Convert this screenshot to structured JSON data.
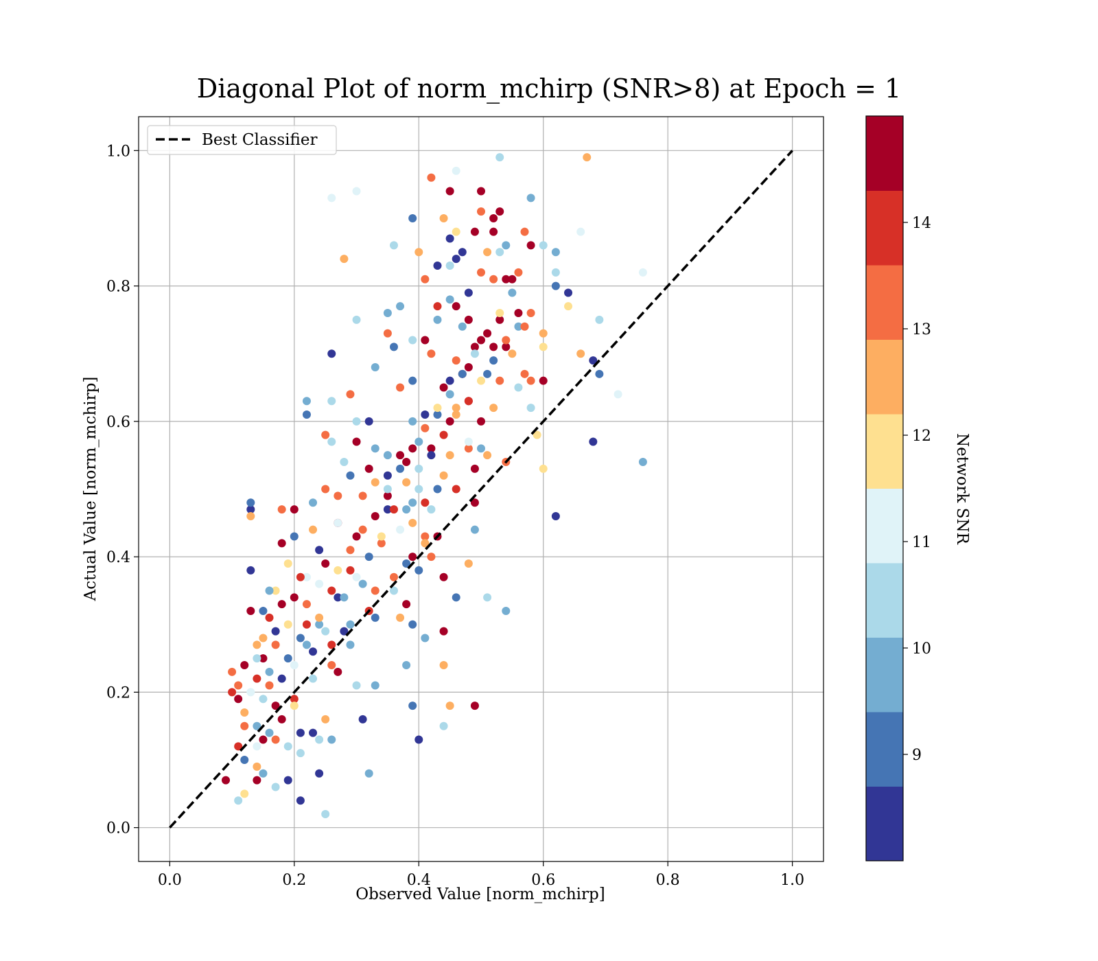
{
  "chart_data": {
    "type": "scatter",
    "title": "Diagonal Plot of norm_mchirp (SNR>8) at Epoch = 1",
    "xlabel": "Observed Value [norm_mchirp]",
    "ylabel": "Actual Value [norm_mchirp]",
    "xlim": [
      -0.05,
      1.05
    ],
    "ylim": [
      -0.05,
      1.05
    ],
    "xticks": [
      "0.0",
      "0.2",
      "0.4",
      "0.6",
      "0.8",
      "1.0"
    ],
    "yticks": [
      "0.0",
      "0.2",
      "0.4",
      "0.6",
      "0.8",
      "1.0"
    ],
    "grid": true,
    "legend": {
      "position": "top-left",
      "entries": [
        "Best Classifier"
      ]
    },
    "reference_line": {
      "name": "Best Classifier",
      "x": [
        0,
        1
      ],
      "y": [
        0,
        1
      ],
      "style": "dashed",
      "color": "#000000"
    },
    "colorbar": {
      "label": "Network SNR",
      "range": [
        8,
        15
      ],
      "ticks": [
        "9",
        "10",
        "11",
        "12",
        "13",
        "14"
      ],
      "colors": [
        "#313695",
        "#4575b4",
        "#74add1",
        "#abd9e9",
        "#e0f3f8",
        "#fee090",
        "#fdae61",
        "#f46d43",
        "#d73027",
        "#a50026"
      ]
    },
    "points": [
      [
        0.09,
        0.07,
        14.5
      ],
      [
        0.1,
        0.2,
        14.2
      ],
      [
        0.1,
        0.23,
        13.1
      ],
      [
        0.11,
        0.19,
        14.6
      ],
      [
        0.11,
        0.12,
        14.1
      ],
      [
        0.12,
        0.24,
        14.5
      ],
      [
        0.12,
        0.15,
        13.5
      ],
      [
        0.12,
        0.05,
        12.0
      ],
      [
        0.11,
        0.04,
        10.5
      ],
      [
        0.13,
        0.32,
        14.3
      ],
      [
        0.13,
        0.38,
        8.4
      ],
      [
        0.13,
        0.47,
        8.4
      ],
      [
        0.13,
        0.48,
        9.2
      ],
      [
        0.13,
        0.46,
        12.6
      ],
      [
        0.14,
        0.27,
        12.8
      ],
      [
        0.14,
        0.22,
        13.7
      ],
      [
        0.14,
        0.15,
        9.4
      ],
      [
        0.14,
        0.09,
        12.4
      ],
      [
        0.14,
        0.07,
        14.6
      ],
      [
        0.15,
        0.32,
        9.1
      ],
      [
        0.15,
        0.25,
        14.4
      ],
      [
        0.15,
        0.19,
        10.3
      ],
      [
        0.15,
        0.13,
        14.7
      ],
      [
        0.15,
        0.08,
        10.0
      ],
      [
        0.16,
        0.31,
        14.2
      ],
      [
        0.16,
        0.21,
        13.1
      ],
      [
        0.16,
        0.14,
        9.5
      ],
      [
        0.17,
        0.06,
        10.5
      ],
      [
        0.17,
        0.18,
        14.5
      ],
      [
        0.17,
        0.29,
        8.3
      ],
      [
        0.17,
        0.35,
        12.2
      ],
      [
        0.18,
        0.42,
        14.4
      ],
      [
        0.18,
        0.47,
        13.3
      ],
      [
        0.18,
        0.33,
        14.5
      ],
      [
        0.19,
        0.25,
        9.0
      ],
      [
        0.19,
        0.12,
        10.5
      ],
      [
        0.19,
        0.07,
        8.4
      ],
      [
        0.2,
        0.47,
        14.6
      ],
      [
        0.2,
        0.43,
        9.3
      ],
      [
        0.2,
        0.34,
        14.3
      ],
      [
        0.2,
        0.19,
        14.0
      ],
      [
        0.21,
        0.14,
        8.4
      ],
      [
        0.21,
        0.04,
        8.7
      ],
      [
        0.21,
        0.11,
        10.5
      ],
      [
        0.22,
        0.3,
        13.8
      ],
      [
        0.22,
        0.37,
        10.8
      ],
      [
        0.22,
        0.27,
        9.6
      ],
      [
        0.22,
        0.61,
        9.2
      ],
      [
        0.22,
        0.63,
        9.4
      ],
      [
        0.23,
        0.48,
        9.4
      ],
      [
        0.23,
        0.44,
        12.8
      ],
      [
        0.23,
        0.14,
        8.5
      ],
      [
        0.24,
        0.08,
        8.5
      ],
      [
        0.24,
        0.13,
        10.6
      ],
      [
        0.24,
        0.3,
        9.6
      ],
      [
        0.24,
        0.36,
        11.4
      ],
      [
        0.25,
        0.39,
        14.6
      ],
      [
        0.25,
        0.5,
        13.6
      ],
      [
        0.25,
        0.58,
        13.6
      ],
      [
        0.26,
        0.57,
        10.5
      ],
      [
        0.26,
        0.63,
        10.5
      ],
      [
        0.26,
        0.93,
        11.3
      ],
      [
        0.25,
        0.16,
        12.6
      ],
      [
        0.25,
        0.02,
        10.6
      ],
      [
        0.26,
        0.13,
        9.8
      ],
      [
        0.26,
        0.7,
        8.4
      ],
      [
        0.26,
        0.27,
        14.0
      ],
      [
        0.27,
        0.49,
        13.3
      ],
      [
        0.27,
        0.45,
        14.4
      ],
      [
        0.27,
        0.34,
        8.3
      ],
      [
        0.27,
        0.23,
        14.5
      ],
      [
        0.28,
        0.84,
        12.7
      ],
      [
        0.28,
        0.54,
        10.4
      ],
      [
        0.29,
        0.64,
        13.3
      ],
      [
        0.29,
        0.52,
        9.3
      ],
      [
        0.29,
        0.38,
        13.8
      ],
      [
        0.29,
        0.3,
        9.6
      ],
      [
        0.3,
        0.94,
        11.3
      ],
      [
        0.3,
        0.75,
        10.5
      ],
      [
        0.3,
        0.6,
        10.4
      ],
      [
        0.3,
        0.57,
        14.5
      ],
      [
        0.3,
        0.43,
        14.5
      ],
      [
        0.3,
        0.21,
        10.5
      ],
      [
        0.31,
        0.16,
        8.5
      ],
      [
        0.31,
        0.36,
        10.0
      ],
      [
        0.32,
        0.08,
        10.0
      ],
      [
        0.32,
        0.6,
        8.6
      ],
      [
        0.32,
        0.53,
        14.5
      ],
      [
        0.33,
        0.68,
        9.4
      ],
      [
        0.33,
        0.51,
        12.5
      ],
      [
        0.33,
        0.35,
        13.6
      ],
      [
        0.33,
        0.31,
        9.3
      ],
      [
        0.33,
        0.21,
        10.0
      ],
      [
        0.34,
        0.42,
        13.4
      ],
      [
        0.35,
        0.76,
        10.0
      ],
      [
        0.35,
        0.73,
        13.4
      ],
      [
        0.35,
        0.55,
        9.6
      ],
      [
        0.35,
        0.47,
        8.5
      ],
      [
        0.35,
        0.49,
        14.6
      ],
      [
        0.36,
        0.86,
        10.6
      ],
      [
        0.36,
        0.71,
        9.3
      ],
      [
        0.36,
        0.37,
        13.6
      ],
      [
        0.37,
        0.77,
        9.4
      ],
      [
        0.37,
        0.65,
        13.6
      ],
      [
        0.37,
        0.55,
        14.6
      ],
      [
        0.37,
        0.31,
        12.3
      ],
      [
        0.38,
        0.54,
        14.6
      ],
      [
        0.38,
        0.47,
        9.5
      ],
      [
        0.38,
        0.24,
        10.0
      ],
      [
        0.38,
        0.33,
        14.5
      ],
      [
        0.39,
        0.9,
        9.3
      ],
      [
        0.39,
        0.72,
        10.4
      ],
      [
        0.39,
        0.66,
        9.0
      ],
      [
        0.39,
        0.6,
        9.5
      ],
      [
        0.39,
        0.48,
        10.0
      ],
      [
        0.39,
        0.4,
        14.6
      ],
      [
        0.39,
        0.3,
        9.3
      ],
      [
        0.39,
        0.18,
        9.3
      ],
      [
        0.4,
        0.85,
        12.5
      ],
      [
        0.4,
        0.57,
        9.8
      ],
      [
        0.4,
        0.5,
        10.4
      ],
      [
        0.4,
        0.38,
        9.3
      ],
      [
        0.4,
        0.13,
        8.3
      ],
      [
        0.41,
        0.81,
        13.4
      ],
      [
        0.41,
        0.72,
        14.6
      ],
      [
        0.41,
        0.61,
        8.5
      ],
      [
        0.41,
        0.48,
        14.1
      ],
      [
        0.41,
        0.43,
        13.3
      ],
      [
        0.41,
        0.28,
        9.5
      ],
      [
        0.42,
        0.96,
        13.3
      ],
      [
        0.42,
        0.7,
        13.6
      ],
      [
        0.42,
        0.56,
        14.4
      ],
      [
        0.42,
        0.4,
        13.5
      ],
      [
        0.43,
        0.83,
        8.4
      ],
      [
        0.43,
        0.77,
        13.8
      ],
      [
        0.43,
        0.75,
        9.4
      ],
      [
        0.43,
        0.61,
        9.0
      ],
      [
        0.43,
        0.5,
        9.3
      ],
      [
        0.43,
        0.43,
        14.5
      ],
      [
        0.44,
        0.9,
        12.6
      ],
      [
        0.44,
        0.65,
        14.4
      ],
      [
        0.44,
        0.37,
        14.6
      ],
      [
        0.44,
        0.29,
        14.6
      ],
      [
        0.44,
        0.24,
        12.8
      ],
      [
        0.44,
        0.15,
        10.4
      ],
      [
        0.45,
        0.94,
        14.6
      ],
      [
        0.45,
        0.87,
        8.4
      ],
      [
        0.45,
        0.83,
        10.5
      ],
      [
        0.45,
        0.78,
        9.5
      ],
      [
        0.45,
        0.66,
        8.4
      ],
      [
        0.45,
        0.6,
        14.5
      ],
      [
        0.45,
        0.55,
        12.5
      ],
      [
        0.45,
        0.18,
        12.6
      ],
      [
        0.46,
        0.97,
        11.3
      ],
      [
        0.46,
        0.88,
        12.2
      ],
      [
        0.46,
        0.84,
        8.4
      ],
      [
        0.46,
        0.77,
        14.6
      ],
      [
        0.46,
        0.69,
        13.3
      ],
      [
        0.46,
        0.62,
        12.6
      ],
      [
        0.46,
        0.34,
        9.3
      ],
      [
        0.47,
        0.85,
        8.3
      ],
      [
        0.47,
        0.74,
        9.5
      ],
      [
        0.47,
        0.67,
        14.6
      ],
      [
        0.48,
        0.79,
        8.5
      ],
      [
        0.48,
        0.75,
        14.6
      ],
      [
        0.48,
        0.68,
        14.6
      ],
      [
        0.48,
        0.63,
        14.6
      ],
      [
        0.48,
        0.56,
        13.6
      ],
      [
        0.48,
        0.39,
        12.6
      ],
      [
        0.49,
        0.88,
        14.5
      ],
      [
        0.49,
        0.71,
        14.4
      ],
      [
        0.49,
        0.53,
        14.3
      ],
      [
        0.49,
        0.48,
        14.6
      ],
      [
        0.49,
        0.44,
        9.5
      ],
      [
        0.49,
        0.18,
        14.6
      ],
      [
        0.5,
        0.94,
        14.5
      ],
      [
        0.5,
        0.91,
        13.4
      ],
      [
        0.5,
        0.82,
        13.6
      ],
      [
        0.5,
        0.72,
        14.6
      ],
      [
        0.5,
        0.6,
        14.6
      ],
      [
        0.5,
        0.56,
        9.4
      ],
      [
        0.51,
        0.85,
        12.6
      ],
      [
        0.51,
        0.67,
        9.3
      ],
      [
        0.51,
        0.55,
        12.5
      ],
      [
        0.51,
        0.34,
        10.5
      ],
      [
        0.52,
        0.9,
        14.6
      ],
      [
        0.52,
        0.88,
        14.4
      ],
      [
        0.52,
        0.81,
        13.6
      ],
      [
        0.52,
        0.71,
        14.5
      ],
      [
        0.52,
        0.62,
        12.7
      ],
      [
        0.53,
        0.99,
        10.5
      ],
      [
        0.53,
        0.91,
        14.4
      ],
      [
        0.53,
        0.85,
        10.4
      ],
      [
        0.53,
        0.75,
        14.6
      ],
      [
        0.53,
        0.66,
        13.6
      ],
      [
        0.54,
        0.86,
        9.4
      ],
      [
        0.54,
        0.81,
        14.6
      ],
      [
        0.54,
        0.71,
        14.6
      ],
      [
        0.54,
        0.54,
        13.5
      ],
      [
        0.54,
        0.32,
        10.0
      ],
      [
        0.55,
        0.81,
        14.6
      ],
      [
        0.55,
        0.7,
        12.5
      ],
      [
        0.56,
        0.82,
        13.6
      ],
      [
        0.56,
        0.76,
        14.6
      ],
      [
        0.56,
        0.74,
        9.5
      ],
      [
        0.56,
        0.65,
        10.5
      ],
      [
        0.57,
        0.88,
        13.3
      ],
      [
        0.57,
        0.74,
        13.4
      ],
      [
        0.57,
        0.67,
        13.6
      ],
      [
        0.58,
        0.93,
        9.8
      ],
      [
        0.58,
        0.86,
        14.7
      ],
      [
        0.58,
        0.76,
        13.4
      ],
      [
        0.58,
        0.62,
        10.5
      ],
      [
        0.58,
        0.66,
        13.2
      ],
      [
        0.59,
        0.58,
        12.2
      ],
      [
        0.6,
        0.86,
        10.5
      ],
      [
        0.6,
        0.73,
        12.3
      ],
      [
        0.6,
        0.71,
        12.2
      ],
      [
        0.6,
        0.53,
        12.2
      ],
      [
        0.6,
        0.66,
        14.6
      ],
      [
        0.62,
        0.85,
        10.0
      ],
      [
        0.62,
        0.82,
        10.5
      ],
      [
        0.62,
        0.8,
        9.3
      ],
      [
        0.62,
        0.46,
        8.5
      ],
      [
        0.64,
        0.79,
        8.5
      ],
      [
        0.64,
        0.77,
        12.2
      ],
      [
        0.66,
        0.88,
        11.3
      ],
      [
        0.66,
        0.7,
        12.3
      ],
      [
        0.67,
        0.99,
        12.4
      ],
      [
        0.68,
        0.69,
        8.4
      ],
      [
        0.68,
        0.57,
        8.3
      ],
      [
        0.69,
        0.75,
        10.5
      ],
      [
        0.69,
        0.67,
        9.3
      ],
      [
        0.72,
        0.64,
        11.3
      ],
      [
        0.76,
        0.54,
        9.8
      ],
      [
        0.76,
        0.82,
        11.2
      ],
      [
        0.11,
        0.21,
        13.0
      ],
      [
        0.12,
        0.17,
        12.3
      ],
      [
        0.13,
        0.2,
        11.2
      ],
      [
        0.14,
        0.25,
        10.4
      ],
      [
        0.15,
        0.28,
        12.6
      ],
      [
        0.16,
        0.23,
        9.6
      ],
      [
        0.17,
        0.27,
        13.4
      ],
      [
        0.18,
        0.22,
        8.4
      ],
      [
        0.19,
        0.3,
        12.1
      ],
      [
        0.2,
        0.24,
        11.4
      ],
      [
        0.21,
        0.28,
        9.1
      ],
      [
        0.22,
        0.33,
        13.6
      ],
      [
        0.23,
        0.26,
        8.7
      ],
      [
        0.24,
        0.31,
        12.4
      ],
      [
        0.25,
        0.29,
        10.3
      ],
      [
        0.26,
        0.35,
        14.2
      ],
      [
        0.27,
        0.38,
        11.6
      ],
      [
        0.28,
        0.34,
        9.4
      ],
      [
        0.29,
        0.41,
        13.2
      ],
      [
        0.3,
        0.37,
        10.8
      ],
      [
        0.31,
        0.44,
        12.9
      ],
      [
        0.32,
        0.4,
        8.9
      ],
      [
        0.33,
        0.46,
        14.3
      ],
      [
        0.34,
        0.43,
        11.8
      ],
      [
        0.35,
        0.5,
        10.2
      ],
      [
        0.36,
        0.47,
        13.7
      ],
      [
        0.37,
        0.53,
        9.0
      ],
      [
        0.38,
        0.51,
        12.3
      ],
      [
        0.39,
        0.56,
        14.5
      ],
      [
        0.4,
        0.53,
        10.6
      ],
      [
        0.41,
        0.59,
        13.1
      ],
      [
        0.42,
        0.55,
        8.6
      ],
      [
        0.43,
        0.62,
        11.5
      ],
      [
        0.44,
        0.58,
        14.0
      ],
      [
        0.45,
        0.64,
        9.9
      ],
      [
        0.46,
        0.61,
        12.6
      ],
      [
        0.47,
        0.67,
        8.8
      ],
      [
        0.48,
        0.63,
        13.9
      ],
      [
        0.49,
        0.7,
        10.7
      ],
      [
        0.5,
        0.66,
        12.2
      ],
      [
        0.51,
        0.73,
        14.4
      ],
      [
        0.52,
        0.69,
        9.2
      ],
      [
        0.53,
        0.76,
        11.7
      ],
      [
        0.54,
        0.72,
        13.3
      ],
      [
        0.55,
        0.79,
        10.1
      ],
      [
        0.44,
        0.52,
        12.7
      ],
      [
        0.37,
        0.44,
        11.0
      ],
      [
        0.28,
        0.29,
        8.5
      ],
      [
        0.33,
        0.56,
        9.7
      ],
      [
        0.21,
        0.37,
        14.1
      ],
      [
        0.16,
        0.35,
        9.9
      ],
      [
        0.19,
        0.39,
        12.0
      ],
      [
        0.24,
        0.41,
        8.4
      ],
      [
        0.27,
        0.45,
        10.9
      ],
      [
        0.31,
        0.49,
        13.5
      ],
      [
        0.35,
        0.52,
        8.2
      ],
      [
        0.39,
        0.45,
        12.8
      ],
      [
        0.42,
        0.47,
        10.3
      ],
      [
        0.46,
        0.5,
        14.1
      ],
      [
        0.48,
        0.57,
        11.2
      ],
      [
        0.23,
        0.22,
        10.6
      ],
      [
        0.26,
        0.24,
        13.4
      ],
      [
        0.29,
        0.27,
        9.5
      ],
      [
        0.18,
        0.16,
        14.5
      ],
      [
        0.2,
        0.18,
        12.1
      ],
      [
        0.14,
        0.12,
        11.0
      ],
      [
        0.12,
        0.1,
        8.8
      ],
      [
        0.17,
        0.13,
        13.2
      ],
      [
        0.36,
        0.35,
        10.2
      ],
      [
        0.32,
        0.32,
        14.2
      ],
      [
        0.38,
        0.39,
        9.3
      ],
      [
        0.41,
        0.42,
        12.6
      ]
    ]
  }
}
